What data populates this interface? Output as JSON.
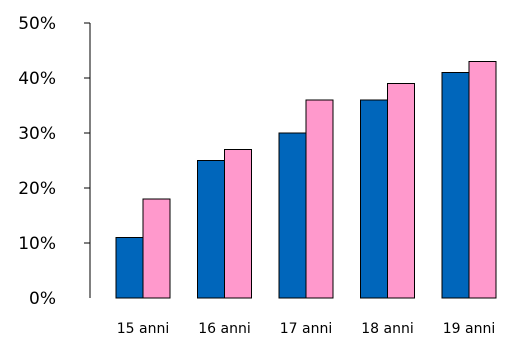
{
  "chart_data": {
    "type": "bar",
    "title": "",
    "xlabel": "",
    "ylabel": "",
    "categories": [
      "15 anni",
      "16 anni",
      "17 anni",
      "18 anni",
      "19 anni"
    ],
    "series": [
      {
        "values": [
          11,
          25,
          30,
          36,
          41
        ],
        "color": "#0066bb"
      },
      {
        "values": [
          18,
          27,
          36,
          39,
          43
        ],
        "color": "#ff99cc"
      }
    ],
    "ylim": [
      0,
      50
    ],
    "y_ticks": [
      "0%",
      "10%",
      "20%",
      "30%",
      "40%",
      "50%"
    ],
    "grid": false,
    "legend": "none"
  }
}
